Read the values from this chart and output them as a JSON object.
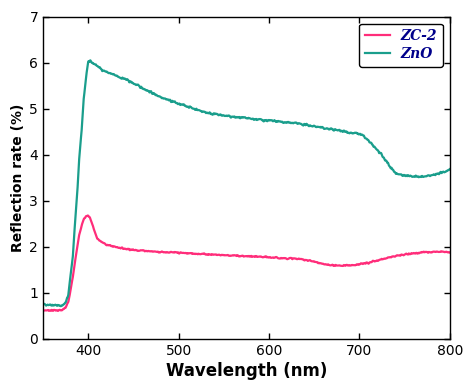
{
  "title": "",
  "xlabel": "Wavelength (nm)",
  "ylabel": "Reflection rate (%)",
  "xlim": [
    350,
    800
  ],
  "ylim": [
    0,
    7
  ],
  "yticks": [
    0,
    1,
    2,
    3,
    4,
    5,
    6,
    7
  ],
  "xticks": [
    400,
    500,
    600,
    700,
    800
  ],
  "zno_color": "#1a9e8c",
  "zc2_color": "#ff2d7a",
  "linewidth": 1.6,
  "legend_labels": [
    "ZC-2",
    "ZnO"
  ],
  "figsize": [
    4.74,
    3.91
  ],
  "dpi": 100,
  "zno_x": [
    350,
    360,
    365,
    368,
    370,
    372,
    375,
    378,
    380,
    383,
    385,
    388,
    390,
    393,
    395,
    398,
    400,
    402,
    404,
    406,
    408,
    410,
    415,
    420,
    425,
    430,
    435,
    440,
    445,
    450,
    455,
    460,
    465,
    470,
    475,
    480,
    485,
    490,
    495,
    500,
    510,
    520,
    530,
    540,
    550,
    560,
    570,
    580,
    590,
    600,
    610,
    620,
    630,
    640,
    650,
    660,
    670,
    680,
    690,
    700,
    705,
    710,
    715,
    720,
    725,
    730,
    735,
    740,
    750,
    760,
    770,
    780,
    790,
    800
  ],
  "zno_y": [
    0.75,
    0.74,
    0.73,
    0.72,
    0.72,
    0.73,
    0.8,
    0.95,
    1.3,
    1.8,
    2.4,
    3.2,
    3.9,
    4.6,
    5.2,
    5.75,
    6.02,
    6.02,
    6.0,
    5.98,
    5.96,
    5.93,
    5.85,
    5.8,
    5.76,
    5.72,
    5.68,
    5.65,
    5.6,
    5.55,
    5.5,
    5.45,
    5.4,
    5.35,
    5.3,
    5.26,
    5.22,
    5.18,
    5.15,
    5.1,
    5.05,
    4.98,
    4.92,
    4.88,
    4.85,
    4.82,
    4.8,
    4.78,
    4.76,
    4.74,
    4.72,
    4.7,
    4.68,
    4.65,
    4.62,
    4.58,
    4.55,
    4.52,
    4.48,
    4.45,
    4.4,
    4.3,
    4.2,
    4.1,
    3.98,
    3.85,
    3.72,
    3.6,
    3.55,
    3.52,
    3.52,
    3.55,
    3.6,
    3.68
  ],
  "zc2_x": [
    350,
    360,
    365,
    368,
    370,
    372,
    375,
    378,
    380,
    383,
    385,
    388,
    390,
    393,
    395,
    398,
    400,
    402,
    404,
    406,
    408,
    410,
    415,
    420,
    425,
    430,
    435,
    440,
    445,
    450,
    460,
    470,
    480,
    490,
    500,
    510,
    520,
    530,
    540,
    550,
    560,
    570,
    580,
    590,
    600,
    610,
    620,
    630,
    640,
    650,
    660,
    670,
    680,
    690,
    700,
    710,
    720,
    730,
    740,
    750,
    760,
    770,
    780,
    790,
    800
  ],
  "zc2_y": [
    0.62,
    0.62,
    0.62,
    0.62,
    0.62,
    0.63,
    0.68,
    0.8,
    1.0,
    1.35,
    1.65,
    2.0,
    2.25,
    2.48,
    2.6,
    2.67,
    2.68,
    2.63,
    2.52,
    2.4,
    2.28,
    2.18,
    2.1,
    2.05,
    2.02,
    2.0,
    1.98,
    1.96,
    1.95,
    1.93,
    1.92,
    1.9,
    1.89,
    1.88,
    1.87,
    1.86,
    1.85,
    1.84,
    1.83,
    1.82,
    1.81,
    1.8,
    1.79,
    1.78,
    1.77,
    1.76,
    1.75,
    1.74,
    1.72,
    1.68,
    1.62,
    1.6,
    1.59,
    1.6,
    1.62,
    1.65,
    1.7,
    1.76,
    1.8,
    1.83,
    1.86,
    1.88,
    1.89,
    1.9,
    1.88
  ]
}
